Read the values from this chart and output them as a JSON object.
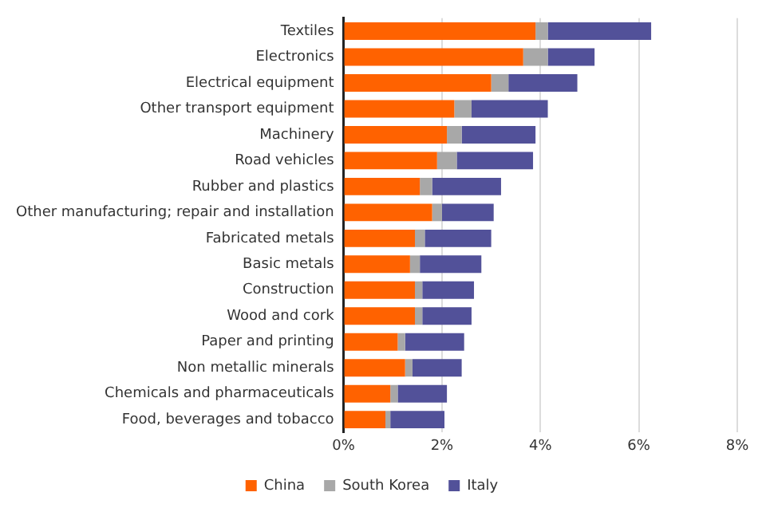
{
  "chart_data": {
    "type": "bar",
    "orientation": "horizontal",
    "stacked": true,
    "categories": [
      "Textiles",
      "Electronics",
      "Electrical equipment",
      "Other transport equipment",
      "Machinery",
      "Road vehicles",
      "Rubber and plastics",
      "Other manufacturing; repair and installation",
      "Fabricated metals",
      "Basic metals",
      "Construction",
      "Wood and cork",
      "Paper and printing",
      "Non metallic minerals",
      "Chemicals and pharmaceuticals",
      "Food, beverages and tobacco"
    ],
    "series": [
      {
        "name": "China",
        "color": "#ff6200",
        "values": [
          3.9,
          3.65,
          3.0,
          2.25,
          2.1,
          1.9,
          1.55,
          1.8,
          1.45,
          1.35,
          1.45,
          1.45,
          1.1,
          1.25,
          0.95,
          0.85
        ]
      },
      {
        "name": "South Korea",
        "color": "#a8a8a8",
        "values": [
          0.25,
          0.5,
          0.35,
          0.35,
          0.3,
          0.4,
          0.25,
          0.2,
          0.2,
          0.2,
          0.15,
          0.15,
          0.15,
          0.15,
          0.15,
          0.1
        ]
      },
      {
        "name": "Italy",
        "color": "#525199",
        "values": [
          2.1,
          0.95,
          1.4,
          1.55,
          1.5,
          1.55,
          1.4,
          1.05,
          1.35,
          1.25,
          1.05,
          1.0,
          1.2,
          1.0,
          1.0,
          1.1
        ]
      }
    ],
    "xlim": [
      0,
      8
    ],
    "xticks": [
      {
        "value": 0,
        "label": "0%"
      },
      {
        "value": 2,
        "label": "2%"
      },
      {
        "value": 4,
        "label": "4%"
      },
      {
        "value": 6,
        "label": "6%"
      },
      {
        "value": 8,
        "label": "8%"
      }
    ],
    "grid": "x",
    "legend": "bottom"
  }
}
